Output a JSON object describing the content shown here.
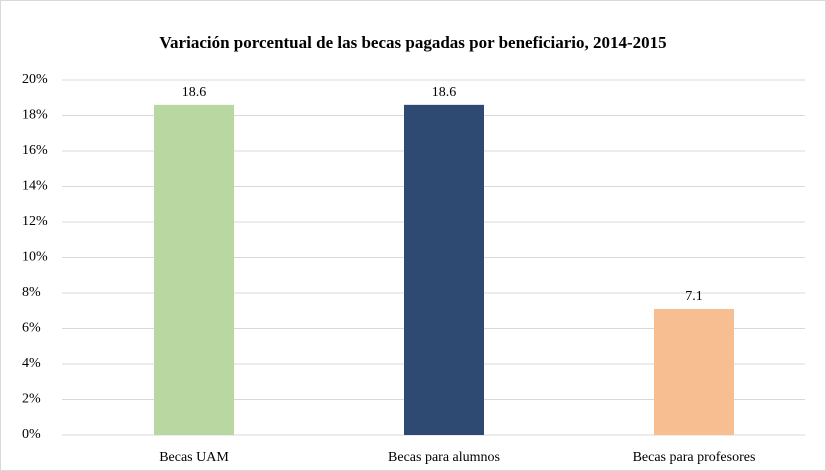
{
  "chart_data": {
    "type": "bar",
    "title": "Variación porcentual de las becas pagadas por beneficiario, 2014-2015",
    "categories": [
      "Becas UAM",
      "Becas para alumnos",
      "Becas para profesores"
    ],
    "values": [
      18.6,
      18.6,
      7.1
    ],
    "colors": [
      "#b9d7a1",
      "#2e4a73",
      "#f6be91"
    ],
    "ylim": [
      0,
      20
    ],
    "yticks": [
      {
        "value": 0,
        "label": "0%"
      },
      {
        "value": 2,
        "label": "2%"
      },
      {
        "value": 4,
        "label": "4%"
      },
      {
        "value": 6,
        "label": "6%"
      },
      {
        "value": 8,
        "label": "8%"
      },
      {
        "value": 10,
        "label": "10%"
      },
      {
        "value": 12,
        "label": "12%"
      },
      {
        "value": 14,
        "label": "14%"
      },
      {
        "value": 16,
        "label": "16%"
      },
      {
        "value": 18,
        "label": "18%"
      },
      {
        "value": 20,
        "label": "20%"
      }
    ],
    "grid": true
  }
}
